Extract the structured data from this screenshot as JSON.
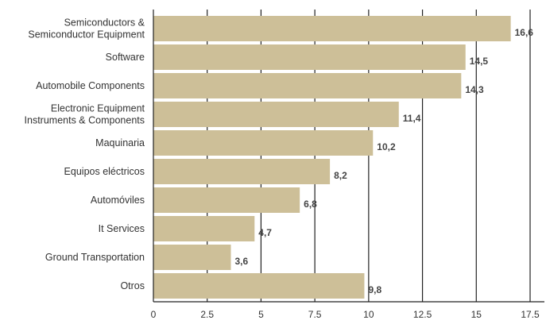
{
  "chart_data": {
    "type": "bar",
    "orientation": "horizontal",
    "categories": [
      [
        "Semiconductors &",
        "Semiconductor Equipment"
      ],
      [
        "Software"
      ],
      [
        "Automobile Components"
      ],
      [
        "Electronic Equipment",
        "Instruments & Components"
      ],
      [
        "Maquinaria"
      ],
      [
        "Equipos eléctricos"
      ],
      [
        "Automóviles"
      ],
      [
        "It Services"
      ],
      [
        "Ground Transportation"
      ],
      [
        "Otros"
      ]
    ],
    "values": [
      16.6,
      14.5,
      14.3,
      11.4,
      10.2,
      8.2,
      6.8,
      4.7,
      3.6,
      9.8
    ],
    "value_labels": [
      "16,6",
      "14,5",
      "14,3",
      "11,4",
      "10,2",
      "8,2",
      "6,8",
      "4,7",
      "3,6",
      "9,8"
    ],
    "xlim": [
      0,
      17.5
    ],
    "xticks": [
      0,
      2.5,
      5,
      7.5,
      10,
      12.5,
      15,
      17.5
    ],
    "xtick_labels": [
      "0",
      "2.5",
      "5",
      "7.5",
      "10",
      "12.5",
      "15",
      "17.5"
    ],
    "grid": "vertical",
    "bar_color": "#cdbf98",
    "grid_color": "#222222"
  }
}
